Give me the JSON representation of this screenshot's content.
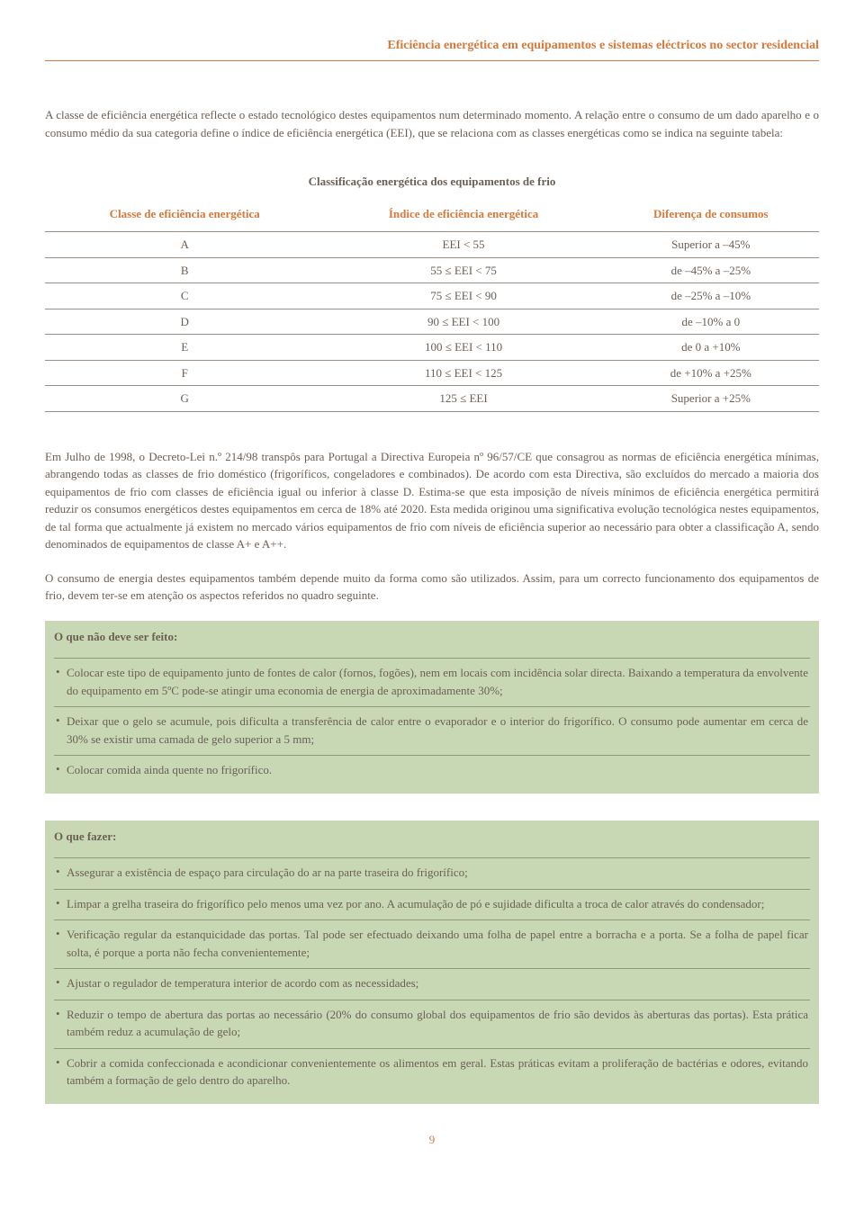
{
  "header": {
    "title": "Eficiência energética em equipamentos e sistemas eléctricos no sector residencial"
  },
  "intro": {
    "text": "A classe de eficiência energética reflecte o estado tecnológico destes equipamentos num determinado momento. A relação entre o consumo de um dado aparelho e o consumo médio da sua categoria define o índice de eficiência energética (EEI), que se relaciona com as classes energéticas como se indica na seguinte tabela:"
  },
  "table": {
    "title": "Classificação energética dos equipamentos de frio",
    "headers": {
      "col1": "Classe de eficiência energética",
      "col2": "Índice de eficiência energética",
      "col3": "Diferença de consumos"
    },
    "rows": [
      {
        "c1": "A",
        "c2": "EEI < 55",
        "c3": "Superior a –45%"
      },
      {
        "c1": "B",
        "c2": "55 ≤ EEI < 75",
        "c3": "de –45% a –25%"
      },
      {
        "c1": "C",
        "c2": "75 ≤ EEI < 90",
        "c3": "de –25% a –10%"
      },
      {
        "c1": "D",
        "c2": "90 ≤ EEI < 100",
        "c3": "de –10% a 0"
      },
      {
        "c1": "E",
        "c2": "100 ≤ EEI < 110",
        "c3": "de 0 a +10%"
      },
      {
        "c1": "F",
        "c2": "110 ≤ EEI < 125",
        "c3": "de +10% a +25%"
      },
      {
        "c1": "G",
        "c2": "125 ≤ EEI",
        "c3": "Superior a +25%"
      }
    ]
  },
  "para1": "Em Julho de 1998, o Decreto-Lei n.º 214/98 transpôs para Portugal a Directiva Europeia nº 96/57/CE que consagrou as normas de eficiência energética mínimas, abrangendo todas as classes de frio doméstico (frigoríficos, congeladores e combinados). De acordo com esta Directiva, são excluídos do mercado a maioria dos equipamentos de frio com classes de eficiência igual ou inferior à classe D. Estima-se que esta imposição de níveis mínimos de eficiência energética permitirá reduzir os consumos energéticos destes equipamentos em cerca de 18% até 2020. Esta medida originou uma significativa evolução tecnológica nestes equipamentos, de tal forma que actualmente já existem no mercado vários equipamentos de frio com níveis de eficiência superior ao necessário para obter a classificação A, sendo denominados de equipamentos de classe A+ e A++.",
  "para2": "O consumo de energia destes equipamentos também depende muito da forma como são utilizados. Assim, para um correcto funcionamento dos equipamentos de frio, devem ter-se em atenção os aspectos referidos no quadro seguinte.",
  "box1": {
    "title": "O que não deve ser feito:",
    "items": [
      "Colocar este tipo de equipamento junto de fontes de calor (fornos, fogões), nem em locais com incidência solar directa. Baixando a temperatura da envolvente do equipamento em 5ºC pode-se atingir uma economia de energia de aproximadamente 30%;",
      "Deixar que o gelo se acumule, pois dificulta a transferência de calor entre o evaporador e o interior do frigorífico. O consumo pode aumentar em cerca de 30% se existir uma camada de gelo superior a 5 mm;",
      "Colocar comida ainda quente no frigorífico."
    ]
  },
  "box2": {
    "title": "O que fazer:",
    "items": [
      "Assegurar a existência de espaço para circulação do ar na parte traseira do frigorífico;",
      "Limpar a grelha traseira do frigorífico pelo menos uma vez por ano. A acumulação de pó e sujidade dificulta a troca de calor através do condensador;",
      "Verificação regular da estanquicidade das portas. Tal pode ser efectuado deixando uma folha de papel entre a borracha e a porta. Se a folha de papel ficar solta, é porque a porta não fecha convenientemente;",
      "Ajustar o regulador de temperatura interior de acordo com as necessidades;",
      "Reduzir o tempo de abertura das portas ao necessário (20% do consumo global dos equipamentos de frio são devidos às aberturas das portas). Esta prática também reduz a acumulação de gelo;",
      "Cobrir a comida confeccionada e acondicionar convenientemente os alimentos em geral. Estas práticas evitam a proliferação de bactérias e odores, evitando também a formação de gelo dentro do aparelho."
    ]
  },
  "pageNumber": "9",
  "colors": {
    "accent": "#d47a3c",
    "text": "#6b6056",
    "boxBg": "#c9d8b4",
    "boxBorder": "#8f9a7c",
    "tableBorder": "#9a9088"
  }
}
